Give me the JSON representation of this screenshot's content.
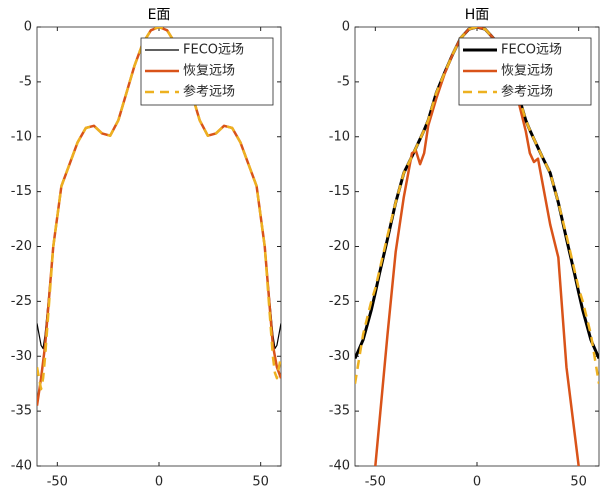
{
  "chart_data": [
    {
      "type": "line",
      "title": "E面",
      "xlim": [
        -60,
        60
      ],
      "xticks": [
        -50,
        0,
        50
      ],
      "ylim": [
        -40,
        0
      ],
      "yticks": [
        0,
        -5,
        -10,
        -15,
        -20,
        -25,
        -30,
        -35,
        -40
      ],
      "legend": "top-right",
      "x": [
        -60,
        -58,
        -57,
        -56,
        -54,
        -52,
        -48,
        -44,
        -40,
        -36,
        -32,
        -28,
        -24,
        -20,
        -16,
        -12,
        -8,
        -4,
        0,
        4,
        8,
        12,
        16,
        20,
        24,
        28,
        32,
        36,
        40,
        44,
        48,
        52,
        54,
        56,
        57,
        58,
        60
      ],
      "series": [
        {
          "name": "FECO远场",
          "color": "#000000",
          "width": 1.2,
          "dash": false,
          "values": [
            -27,
            -29,
            -29.3,
            -28,
            -24,
            -20,
            -14.5,
            -12.5,
            -10.5,
            -9.2,
            -9.0,
            -9.7,
            -9.9,
            -8.5,
            -6,
            -3.5,
            -1.5,
            -0.3,
            0,
            -0.3,
            -1.5,
            -3.5,
            -6,
            -8.5,
            -9.9,
            -9.7,
            -9.0,
            -9.2,
            -10.5,
            -12.5,
            -14.5,
            -20,
            -24,
            -28,
            -29.3,
            -29,
            -27
          ]
        },
        {
          "name": "恢复远场",
          "color": "#d95319",
          "width": 2.5,
          "dash": false,
          "values": [
            -34.5,
            -32,
            -30.5,
            -29,
            -24.5,
            -20,
            -14.5,
            -12.5,
            -10.5,
            -9.2,
            -9.0,
            -9.7,
            -9.9,
            -8.5,
            -6,
            -3.5,
            -1.5,
            -0.3,
            0,
            -0.3,
            -1.5,
            -3.5,
            -6,
            -8.5,
            -9.9,
            -9.7,
            -9.0,
            -9.2,
            -10.5,
            -12.5,
            -14.5,
            -20,
            -24.5,
            -29,
            -30,
            -31,
            -32
          ]
        },
        {
          "name": "参考远场",
          "color": "#edb120",
          "width": 2.5,
          "dash": true,
          "values": [
            -31,
            -33,
            -32,
            -30,
            -25,
            -20,
            -14.5,
            -12.5,
            -10.5,
            -9.2,
            -9.0,
            -9.7,
            -9.9,
            -8.5,
            -6,
            -3.5,
            -1.5,
            -0.3,
            0,
            -0.3,
            -1.5,
            -3.5,
            -6,
            -8.5,
            -9.9,
            -9.7,
            -9.0,
            -9.2,
            -10.5,
            -12.5,
            -14.5,
            -20,
            -25,
            -30,
            -31.5,
            -32,
            -30
          ]
        }
      ]
    },
    {
      "type": "line",
      "title": "H面",
      "xlim": [
        -60,
        60
      ],
      "xticks": [
        -50,
        0,
        50
      ],
      "ylim": [
        -40,
        0
      ],
      "yticks": [
        0,
        -5,
        -10,
        -15,
        -20,
        -25,
        -30,
        -35,
        -40
      ],
      "legend": "top-right",
      "x": [
        -60,
        -56,
        -52,
        -50,
        -48,
        -44,
        -40,
        -36,
        -32,
        -30,
        -28,
        -26,
        -24,
        -20,
        -16,
        -12,
        -8,
        -4,
        0,
        4,
        8,
        12,
        16,
        20,
        24,
        26,
        28,
        30,
        32,
        36,
        40,
        44,
        48,
        50,
        52,
        56,
        60
      ],
      "series": [
        {
          "name": "FECO远场",
          "color": "#000000",
          "width": 3,
          "dash": false,
          "values": [
            -30.2,
            -28.5,
            -25.8,
            -24.2,
            -22.5,
            -19.3,
            -16,
            -13.3,
            -11.8,
            -11,
            -10.2,
            -9.4,
            -8.5,
            -6,
            -4.2,
            -2.5,
            -1,
            -0.2,
            0,
            -0.2,
            -1,
            -2.5,
            -4.2,
            -6,
            -8.5,
            -9.4,
            -10.2,
            -11,
            -11.8,
            -13.3,
            -16,
            -19.3,
            -22.5,
            -24.2,
            -25.8,
            -28.5,
            -30.2
          ]
        },
        {
          "name": "恢复远场",
          "color": "#d95319",
          "width": 2.5,
          "dash": false,
          "values": [
            null,
            null,
            null,
            -40,
            -36,
            -28,
            -20.5,
            -15.5,
            -11.5,
            -11.3,
            -12.5,
            -11.5,
            -9,
            -6.5,
            -4.3,
            -2.5,
            -1,
            -0.2,
            0,
            -0.2,
            -1,
            -2.5,
            -4.3,
            -6.5,
            -9.5,
            -11.5,
            -12.3,
            -12,
            -14,
            -18,
            -21,
            -31,
            -37,
            -40,
            null,
            null,
            null
          ]
        },
        {
          "name": "参考远场",
          "color": "#edb120",
          "width": 2.5,
          "dash": true,
          "values": [
            -32.5,
            -28,
            -25,
            -23.8,
            -22.2,
            -19,
            -16,
            -13.3,
            -11.8,
            -11,
            -10.2,
            -9.4,
            -8.5,
            -6,
            -4.2,
            -2.5,
            -1,
            -0.2,
            0,
            -0.2,
            -1,
            -2.5,
            -4.2,
            -6,
            -8.5,
            -9.4,
            -10.2,
            -11,
            -11.8,
            -13.3,
            -16,
            -19,
            -22.2,
            -23.8,
            -25,
            -28,
            -32.5
          ]
        }
      ]
    }
  ]
}
